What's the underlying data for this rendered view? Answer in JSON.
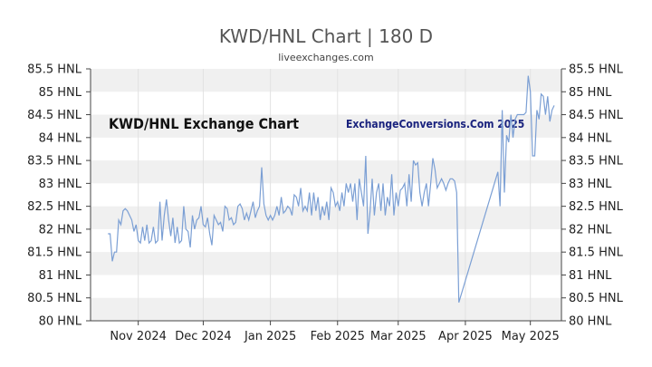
{
  "header": {
    "title": "KWD/HNL Chart | 180 D",
    "subtitle": "liveexchanges.com"
  },
  "chart_data": {
    "type": "line",
    "title": "KWD/HNL Chart | 180 D",
    "subtitle": "liveexchanges.com",
    "xlabel": "",
    "ylabel": "",
    "ylim": [
      80,
      85.5
    ],
    "y_ticks": [
      80,
      80.5,
      81,
      81.5,
      82,
      82.5,
      83,
      83.5,
      84,
      84.5,
      85,
      85.5
    ],
    "y_tick_labels": [
      "80 HNL",
      "80.5 HNL",
      "81 HNL",
      "81.5 HNL",
      "82 HNL",
      "82.5 HNL",
      "83 HNL",
      "83.5 HNL",
      "84 HNL",
      "84.5 HNL",
      "85 HNL",
      "85.5 HNL"
    ],
    "x_ticks": [
      {
        "label": "Nov 2024",
        "date": "2024-11-01"
      },
      {
        "label": "Dec 2024",
        "date": "2024-12-01"
      },
      {
        "label": "Jan 2025",
        "date": "2025-01-01"
      },
      {
        "label": "Feb 2025",
        "date": "2025-02-01"
      },
      {
        "label": "Mar 2025",
        "date": "2025-03-01"
      },
      {
        "label": "Apr 2025",
        "date": "2025-04-01"
      },
      {
        "label": "May 2025",
        "date": "2025-05-01"
      }
    ],
    "xlim": [
      "2024-10-15",
      "2025-05-12"
    ],
    "grid": "alternating horizontal bands",
    "line_color": "#7b9fd4",
    "band_color": "#f0f0f0",
    "annotations": [
      "KWD/HNL Exchange Chart",
      "ExchangeConversions.Com 2025"
    ],
    "series": [
      {
        "name": "",
        "points": [
          [
            "2024-10-18",
            81.9
          ],
          [
            "2024-10-19",
            81.9
          ],
          [
            "2024-10-20",
            81.3
          ],
          [
            "2024-10-21",
            81.5
          ],
          [
            "2024-10-22",
            81.5
          ],
          [
            "2024-10-23",
            82.2
          ],
          [
            "2024-10-24",
            82.1
          ],
          [
            "2024-10-25",
            82.4
          ],
          [
            "2024-10-26",
            82.45
          ],
          [
            "2024-10-27",
            82.4
          ],
          [
            "2024-10-28",
            82.3
          ],
          [
            "2024-10-29",
            82.2
          ],
          [
            "2024-10-30",
            81.95
          ],
          [
            "2024-10-31",
            82.1
          ],
          [
            "2024-11-01",
            81.75
          ],
          [
            "2024-11-02",
            81.7
          ],
          [
            "2024-11-03",
            82.05
          ],
          [
            "2024-11-04",
            81.75
          ],
          [
            "2024-11-05",
            82.1
          ],
          [
            "2024-11-06",
            81.7
          ],
          [
            "2024-11-07",
            81.75
          ],
          [
            "2024-11-08",
            82.05
          ],
          [
            "2024-11-09",
            81.7
          ],
          [
            "2024-11-10",
            81.75
          ],
          [
            "2024-11-11",
            82.6
          ],
          [
            "2024-11-12",
            81.75
          ],
          [
            "2024-11-13",
            82.3
          ],
          [
            "2024-11-14",
            82.65
          ],
          [
            "2024-11-15",
            82.2
          ],
          [
            "2024-11-16",
            81.85
          ],
          [
            "2024-11-17",
            82.25
          ],
          [
            "2024-11-18",
            81.7
          ],
          [
            "2024-11-19",
            82.05
          ],
          [
            "2024-11-20",
            81.7
          ],
          [
            "2024-11-21",
            81.75
          ],
          [
            "2024-11-22",
            82.5
          ],
          [
            "2024-11-23",
            82.0
          ],
          [
            "2024-11-24",
            81.95
          ],
          [
            "2024-11-25",
            81.6
          ],
          [
            "2024-11-26",
            82.3
          ],
          [
            "2024-11-27",
            82.0
          ],
          [
            "2024-11-28",
            82.2
          ],
          [
            "2024-11-29",
            82.25
          ],
          [
            "2024-11-30",
            82.5
          ],
          [
            "2024-12-01",
            82.1
          ],
          [
            "2024-12-02",
            82.05
          ],
          [
            "2024-12-03",
            82.25
          ],
          [
            "2024-12-04",
            81.9
          ],
          [
            "2024-12-05",
            81.65
          ],
          [
            "2024-12-06",
            82.3
          ],
          [
            "2024-12-07",
            82.2
          ],
          [
            "2024-12-08",
            82.1
          ],
          [
            "2024-12-09",
            82.15
          ],
          [
            "2024-12-10",
            81.95
          ],
          [
            "2024-12-11",
            82.5
          ],
          [
            "2024-12-12",
            82.45
          ],
          [
            "2024-12-13",
            82.2
          ],
          [
            "2024-12-14",
            82.25
          ],
          [
            "2024-12-15",
            82.1
          ],
          [
            "2024-12-16",
            82.15
          ],
          [
            "2024-12-17",
            82.5
          ],
          [
            "2024-12-18",
            82.55
          ],
          [
            "2024-12-19",
            82.45
          ],
          [
            "2024-12-20",
            82.2
          ],
          [
            "2024-12-21",
            82.35
          ],
          [
            "2024-12-22",
            82.2
          ],
          [
            "2024-12-23",
            82.4
          ],
          [
            "2024-12-24",
            82.6
          ],
          [
            "2024-12-25",
            82.25
          ],
          [
            "2024-12-26",
            82.4
          ],
          [
            "2024-12-27",
            82.5
          ],
          [
            "2024-12-28",
            83.35
          ],
          [
            "2024-12-29",
            82.55
          ],
          [
            "2024-12-30",
            82.3
          ],
          [
            "2024-12-31",
            82.2
          ],
          [
            "2025-01-01",
            82.3
          ],
          [
            "2025-01-02",
            82.2
          ],
          [
            "2025-01-03",
            82.3
          ],
          [
            "2025-01-04",
            82.5
          ],
          [
            "2025-01-05",
            82.3
          ],
          [
            "2025-01-06",
            82.7
          ],
          [
            "2025-01-07",
            82.35
          ],
          [
            "2025-01-08",
            82.4
          ],
          [
            "2025-01-09",
            82.5
          ],
          [
            "2025-01-10",
            82.45
          ],
          [
            "2025-01-11",
            82.3
          ],
          [
            "2025-01-12",
            82.75
          ],
          [
            "2025-01-13",
            82.7
          ],
          [
            "2025-01-14",
            82.5
          ],
          [
            "2025-01-15",
            82.9
          ],
          [
            "2025-01-16",
            82.4
          ],
          [
            "2025-01-17",
            82.5
          ],
          [
            "2025-01-18",
            82.4
          ],
          [
            "2025-01-19",
            82.8
          ],
          [
            "2025-01-20",
            82.3
          ],
          [
            "2025-01-21",
            82.8
          ],
          [
            "2025-01-22",
            82.4
          ],
          [
            "2025-01-23",
            82.7
          ],
          [
            "2025-01-24",
            82.2
          ],
          [
            "2025-01-25",
            82.5
          ],
          [
            "2025-01-26",
            82.3
          ],
          [
            "2025-01-27",
            82.6
          ],
          [
            "2025-01-28",
            82.2
          ],
          [
            "2025-01-29",
            82.9
          ],
          [
            "2025-01-30",
            82.8
          ],
          [
            "2025-01-31",
            82.5
          ],
          [
            "2025-02-01",
            82.6
          ],
          [
            "2025-02-02",
            82.4
          ],
          [
            "2025-02-03",
            82.8
          ],
          [
            "2025-02-04",
            82.5
          ],
          [
            "2025-02-05",
            83.0
          ],
          [
            "2025-02-06",
            82.8
          ],
          [
            "2025-02-07",
            83.0
          ],
          [
            "2025-02-08",
            82.6
          ],
          [
            "2025-02-09",
            83.0
          ],
          [
            "2025-02-10",
            82.2
          ],
          [
            "2025-02-11",
            83.1
          ],
          [
            "2025-02-12",
            82.8
          ],
          [
            "2025-02-13",
            82.5
          ],
          [
            "2025-02-14",
            83.6
          ],
          [
            "2025-02-15",
            81.9
          ],
          [
            "2025-02-16",
            82.4
          ],
          [
            "2025-02-17",
            83.1
          ],
          [
            "2025-02-18",
            82.3
          ],
          [
            "2025-02-19",
            82.8
          ],
          [
            "2025-02-20",
            83.0
          ],
          [
            "2025-02-21",
            82.4
          ],
          [
            "2025-02-22",
            83.0
          ],
          [
            "2025-02-23",
            82.3
          ],
          [
            "2025-02-24",
            82.7
          ],
          [
            "2025-02-25",
            82.5
          ],
          [
            "2025-02-26",
            83.2
          ],
          [
            "2025-02-27",
            82.3
          ],
          [
            "2025-02-28",
            82.8
          ],
          [
            "2025-03-01",
            82.5
          ],
          [
            "2025-03-02",
            82.85
          ],
          [
            "2025-03-03",
            82.9
          ],
          [
            "2025-03-04",
            83.0
          ],
          [
            "2025-03-05",
            82.5
          ],
          [
            "2025-03-06",
            83.2
          ],
          [
            "2025-03-07",
            82.6
          ],
          [
            "2025-03-08",
            83.5
          ],
          [
            "2025-03-09",
            83.4
          ],
          [
            "2025-03-10",
            83.45
          ],
          [
            "2025-03-11",
            82.8
          ],
          [
            "2025-03-12",
            82.5
          ],
          [
            "2025-03-13",
            82.8
          ],
          [
            "2025-03-14",
            83.0
          ],
          [
            "2025-03-15",
            82.5
          ],
          [
            "2025-03-16",
            83.0
          ],
          [
            "2025-03-17",
            83.55
          ],
          [
            "2025-03-18",
            83.3
          ],
          [
            "2025-03-19",
            82.9
          ],
          [
            "2025-03-20",
            83.0
          ],
          [
            "2025-03-21",
            83.1
          ],
          [
            "2025-03-22",
            83.0
          ],
          [
            "2025-03-23",
            82.85
          ],
          [
            "2025-03-24",
            83.0
          ],
          [
            "2025-03-25",
            83.1
          ],
          [
            "2025-03-26",
            83.1
          ],
          [
            "2025-03-27",
            83.05
          ],
          [
            "2025-03-28",
            82.8
          ],
          [
            "2025-03-29",
            80.4
          ],
          [
            "2025-04-16",
            83.25
          ],
          [
            "2025-04-17",
            82.5
          ],
          [
            "2025-04-18",
            84.6
          ],
          [
            "2025-04-19",
            82.8
          ],
          [
            "2025-04-20",
            84.05
          ],
          [
            "2025-04-21",
            83.9
          ],
          [
            "2025-04-22",
            84.5
          ],
          [
            "2025-04-23",
            84.0
          ],
          [
            "2025-04-24",
            84.4
          ],
          [
            "2025-04-25",
            84.5
          ],
          [
            "2025-04-26",
            84.5
          ],
          [
            "2025-04-27",
            84.5
          ],
          [
            "2025-04-28",
            84.5
          ],
          [
            "2025-04-29",
            84.55
          ],
          [
            "2025-04-30",
            85.35
          ],
          [
            "2025-05-01",
            85.0
          ],
          [
            "2025-05-02",
            83.6
          ],
          [
            "2025-05-03",
            83.6
          ],
          [
            "2025-05-04",
            84.6
          ],
          [
            "2025-05-05",
            84.4
          ],
          [
            "2025-05-06",
            84.95
          ],
          [
            "2025-05-07",
            84.9
          ],
          [
            "2025-05-08",
            84.5
          ],
          [
            "2025-05-09",
            84.9
          ],
          [
            "2025-05-10",
            84.35
          ],
          [
            "2025-05-11",
            84.6
          ],
          [
            "2025-05-12",
            84.7
          ]
        ]
      }
    ]
  }
}
